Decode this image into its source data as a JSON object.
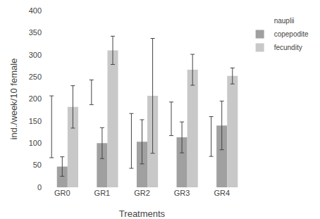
{
  "chart_data": {
    "type": "bar",
    "xlabel": "Treatments",
    "ylabel": "ind./week/10 female",
    "categories": [
      "GR0",
      "GR1",
      "GR2",
      "GR3",
      "GR4"
    ],
    "series": [
      {
        "name": "nauplii",
        "color": "#ffffff",
        "values": [
          137,
          215,
          105,
          155,
          115
        ],
        "errors": [
          70,
          28,
          62,
          38,
          45
        ]
      },
      {
        "name": "copepodite",
        "color": "#a0a0a0",
        "values": [
          47,
          100,
          103,
          113,
          140
        ],
        "errors": [
          22,
          35,
          50,
          35,
          55
        ]
      },
      {
        "name": "fecundity",
        "color": "#c8c8c8",
        "values": [
          182,
          310,
          207,
          266,
          252
        ],
        "errors": [
          48,
          32,
          130,
          35,
          18
        ]
      }
    ],
    "ylim": [
      0,
      400
    ],
    "yticks": [
      0,
      50,
      100,
      150,
      200,
      250,
      300,
      350,
      400
    ],
    "grid": false,
    "legend": "upper right"
  }
}
